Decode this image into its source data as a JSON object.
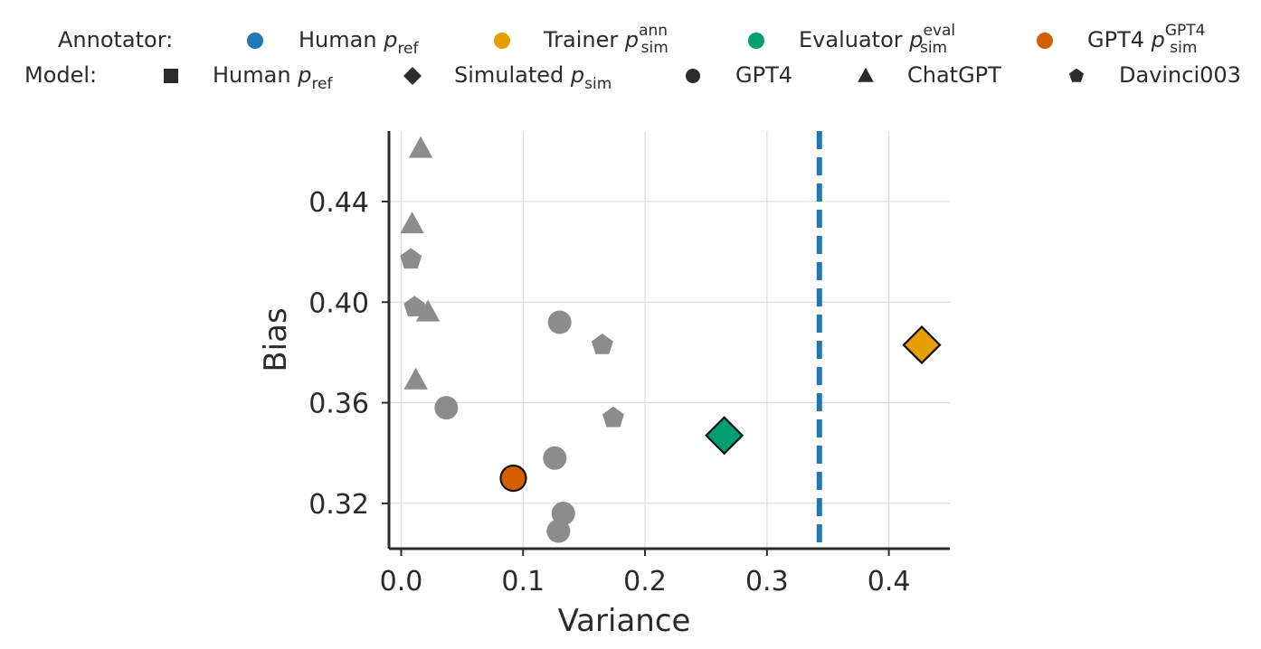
{
  "chart_data": {
    "type": "scatter",
    "xlabel": "Variance",
    "ylabel": "Bias",
    "xlim": [
      -0.01,
      0.45
    ],
    "ylim": [
      0.302,
      0.468
    ],
    "x_ticks": [
      {
        "value": 0.0,
        "label": "0.0"
      },
      {
        "value": 0.1,
        "label": "0.1"
      },
      {
        "value": 0.2,
        "label": "0.2"
      },
      {
        "value": 0.3,
        "label": "0.3"
      },
      {
        "value": 0.4,
        "label": "0.4"
      }
    ],
    "y_ticks": [
      {
        "value": 0.32,
        "label": "0.32"
      },
      {
        "value": 0.36,
        "label": "0.36"
      },
      {
        "value": 0.4,
        "label": "0.40"
      },
      {
        "value": 0.44,
        "label": "0.44"
      }
    ],
    "grid": true,
    "legend_placement": "top",
    "legend": {
      "annotator": {
        "label": "Annotator:",
        "entries": [
          {
            "name": "Human",
            "sub": "ref",
            "sup": "",
            "color": "#1f77b4"
          },
          {
            "name": "Trainer",
            "sub": "sim",
            "sup": "ann",
            "color": "#e69f00"
          },
          {
            "name": "Evaluator",
            "sub": "sim",
            "sup": "eval",
            "color": "#009e73"
          },
          {
            "name": "GPT4",
            "sub": "sim",
            "sup": "GPT4",
            "color": "#d55e00"
          }
        ]
      },
      "model": {
        "label": "Model:",
        "entries": [
          {
            "name": "Human",
            "sub": "ref",
            "marker": "square"
          },
          {
            "name": "Simulated",
            "sub": "sim",
            "marker": "diamond"
          },
          {
            "name": "GPT4",
            "sub": "",
            "marker": "circle"
          },
          {
            "name": "ChatGPT",
            "sub": "",
            "marker": "triangle"
          },
          {
            "name": "Davinci003",
            "sub": "",
            "marker": "pentagon"
          }
        ]
      }
    },
    "reference_line": {
      "axis": "x",
      "value": 0.343,
      "style": "dashed",
      "color": "#1f77b4"
    },
    "series": [
      {
        "model": "ChatGPT",
        "marker": "triangle",
        "color": "#8c8c8c",
        "points": [
          {
            "x": 0.016,
            "y": 0.461
          },
          {
            "x": 0.009,
            "y": 0.431
          },
          {
            "x": 0.022,
            "y": 0.396
          },
          {
            "x": 0.012,
            "y": 0.369
          }
        ]
      },
      {
        "model": "Davinci003",
        "marker": "pentagon",
        "color": "#8c8c8c",
        "points": [
          {
            "x": 0.008,
            "y": 0.417
          },
          {
            "x": 0.011,
            "y": 0.398
          },
          {
            "x": 0.165,
            "y": 0.383
          },
          {
            "x": 0.174,
            "y": 0.354
          }
        ]
      },
      {
        "model": "GPT4",
        "marker": "circle",
        "color": "#8c8c8c",
        "points": [
          {
            "x": 0.13,
            "y": 0.392
          },
          {
            "x": 0.037,
            "y": 0.358
          },
          {
            "x": 0.126,
            "y": 0.338
          },
          {
            "x": 0.133,
            "y": 0.316
          },
          {
            "x": 0.129,
            "y": 0.309
          }
        ]
      },
      {
        "model": "Simulated",
        "marker": "diamond",
        "annotator": "Evaluator",
        "color": "#009e73",
        "outline": true,
        "points": [
          {
            "x": 0.265,
            "y": 0.347
          }
        ]
      },
      {
        "model": "Simulated",
        "marker": "diamond",
        "annotator": "Trainer",
        "color": "#e69f00",
        "outline": true,
        "points": [
          {
            "x": 0.427,
            "y": 0.383
          }
        ]
      },
      {
        "model": "GPT4",
        "marker": "circle",
        "annotator": "GPT4",
        "color": "#d55e00",
        "outline": true,
        "points": [
          {
            "x": 0.092,
            "y": 0.33
          }
        ]
      }
    ]
  }
}
